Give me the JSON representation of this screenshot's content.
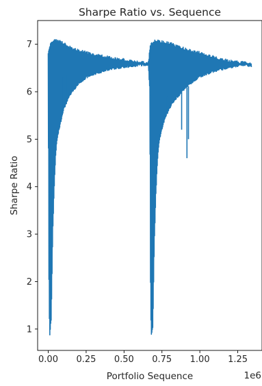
{
  "chart_data": {
    "type": "line",
    "title": "Sharpe Ratio vs. Sequence",
    "xlabel": "Portfolio Sequence",
    "ylabel": "Sharpe Ratio",
    "x_offset_text": "1e6",
    "xlim": [
      -0.07,
      1.41
    ],
    "ylim": [
      0.55,
      7.5
    ],
    "x_ticks": [
      0.0,
      0.25,
      0.5,
      0.75,
      1.0,
      1.25
    ],
    "x_tick_labels": [
      "0.00",
      "0.25",
      "0.50",
      "0.75",
      "1.00",
      "1.25"
    ],
    "y_ticks": [
      1,
      2,
      3,
      4,
      5,
      6,
      7
    ],
    "y_tick_labels": [
      "1",
      "2",
      "3",
      "4",
      "5",
      "6",
      "7"
    ],
    "grid": false,
    "series": [
      {
        "color": "#1f77b4",
        "upper_envelope": [
          [
            0.0,
            6.85
          ],
          [
            0.01,
            7.0
          ],
          [
            0.02,
            7.05
          ],
          [
            0.05,
            7.12
          ],
          [
            0.1,
            7.05
          ],
          [
            0.15,
            6.95
          ],
          [
            0.2,
            6.9
          ],
          [
            0.25,
            6.85
          ],
          [
            0.3,
            6.8
          ],
          [
            0.35,
            6.78
          ],
          [
            0.4,
            6.75
          ],
          [
            0.45,
            6.72
          ],
          [
            0.5,
            6.7
          ],
          [
            0.55,
            6.68
          ],
          [
            0.6,
            6.65
          ],
          [
            0.66,
            6.62
          ],
          [
            0.67,
            6.95
          ],
          [
            0.68,
            7.05
          ],
          [
            0.7,
            7.1
          ],
          [
            0.75,
            7.08
          ],
          [
            0.8,
            7.05
          ],
          [
            0.85,
            6.98
          ],
          [
            0.9,
            6.93
          ],
          [
            0.95,
            6.88
          ],
          [
            1.0,
            6.85
          ],
          [
            1.05,
            6.8
          ],
          [
            1.1,
            6.75
          ],
          [
            1.15,
            6.7
          ],
          [
            1.2,
            6.67
          ],
          [
            1.25,
            6.65
          ],
          [
            1.3,
            6.63
          ],
          [
            1.34,
            6.6
          ]
        ],
        "lower_envelope": [
          [
            0.0,
            6.2
          ],
          [
            0.005,
            1.5
          ],
          [
            0.01,
            0.85
          ],
          [
            0.02,
            1.2
          ],
          [
            0.03,
            3.0
          ],
          [
            0.04,
            4.0
          ],
          [
            0.05,
            4.7
          ],
          [
            0.06,
            5.0
          ],
          [
            0.08,
            5.3
          ],
          [
            0.1,
            5.6
          ],
          [
            0.15,
            5.95
          ],
          [
            0.2,
            6.15
          ],
          [
            0.25,
            6.28
          ],
          [
            0.3,
            6.35
          ],
          [
            0.35,
            6.4
          ],
          [
            0.4,
            6.45
          ],
          [
            0.45,
            6.48
          ],
          [
            0.5,
            6.5
          ],
          [
            0.55,
            6.52
          ],
          [
            0.6,
            6.54
          ],
          [
            0.66,
            6.56
          ],
          [
            0.67,
            6.0
          ],
          [
            0.675,
            1.5
          ],
          [
            0.68,
            0.85
          ],
          [
            0.69,
            1.0
          ],
          [
            0.7,
            2.8
          ],
          [
            0.71,
            3.8
          ],
          [
            0.72,
            4.5
          ],
          [
            0.73,
            4.9
          ],
          [
            0.75,
            5.2
          ],
          [
            0.78,
            5.5
          ],
          [
            0.82,
            5.75
          ],
          [
            0.9,
            6.05
          ],
          [
            1.0,
            6.3
          ],
          [
            1.1,
            6.42
          ],
          [
            1.2,
            6.5
          ],
          [
            1.3,
            6.55
          ],
          [
            1.34,
            6.57
          ]
        ],
        "spikes": [
          [
            0.88,
            5.2
          ],
          [
            0.915,
            4.6
          ],
          [
            0.925,
            5.0
          ],
          [
            0.785,
            5.9
          ],
          [
            0.1,
            6.3
          ],
          [
            0.12,
            6.35
          ]
        ]
      }
    ]
  }
}
